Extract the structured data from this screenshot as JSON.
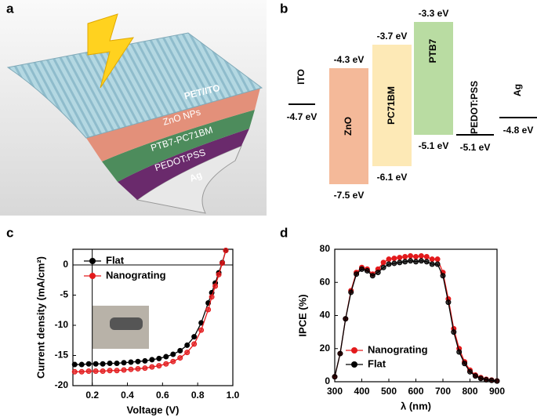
{
  "panel_labels": [
    "a",
    "b",
    "c",
    "d"
  ],
  "device_diagram": {
    "layers": [
      "PET/ITO",
      "ZnO NPs",
      "PTB7-PC71BM",
      "PEDOT:PSS",
      "Ag"
    ]
  },
  "energy_diagram": {
    "materials": [
      {
        "name": "ITO",
        "level": "-4.7 eV"
      },
      {
        "name": "ZnO",
        "top": "-4.3 eV",
        "bottom": "-7.5 eV",
        "color": "#f4b999"
      },
      {
        "name": "PC71BM",
        "top": "-3.7 eV",
        "bottom": "-6.1 eV",
        "color": "#fde9b6"
      },
      {
        "name": "PTB7",
        "top": "-3.3 eV",
        "bottom": "-5.1 eV",
        "color": "#b9dca2"
      },
      {
        "name": "PEDOT:PSS",
        "level": "-5.1 eV"
      },
      {
        "name": "Ag",
        "level": "-4.8 eV"
      }
    ]
  },
  "chart_data": [
    {
      "type": "line",
      "xlabel": "Voltage (V)",
      "ylabel": "Current density (mA/cm²)",
      "x": [
        0.1,
        0.14,
        0.18,
        0.22,
        0.26,
        0.3,
        0.34,
        0.38,
        0.42,
        0.46,
        0.5,
        0.54,
        0.58,
        0.62,
        0.66,
        0.7,
        0.74,
        0.78,
        0.82,
        0.86,
        0.88,
        0.9,
        0.92,
        0.94,
        0.96
      ],
      "series": [
        {
          "name": "Flat",
          "color": "#000000",
          "values": [
            -16.5,
            -16.5,
            -16.4,
            -16.4,
            -16.4,
            -16.3,
            -16.3,
            -16.2,
            -16.1,
            -16.0,
            -15.9,
            -15.7,
            -15.5,
            -15.2,
            -14.8,
            -14.2,
            -13.3,
            -11.9,
            -9.6,
            -6.3,
            -4.6,
            -3.0,
            -1.3,
            0.4,
            2.4
          ]
        },
        {
          "name": "Nanograting",
          "color": "#e31a1c",
          "values": [
            -17.7,
            -17.7,
            -17.6,
            -17.6,
            -17.6,
            -17.5,
            -17.5,
            -17.4,
            -17.3,
            -17.2,
            -17.1,
            -16.9,
            -16.7,
            -16.4,
            -16.0,
            -15.4,
            -14.5,
            -13.1,
            -10.8,
            -7.4,
            -5.3,
            -3.5,
            -1.6,
            0.3,
            2.4
          ]
        }
      ],
      "xlim": [
        0.09,
        1.0
      ],
      "xticks": [
        0.2,
        0.4,
        0.6,
        0.8,
        {
          "value": 1,
          "label": "1.0"
        }
      ],
      "ylim": [
        -20,
        2.6
      ],
      "yticks": [
        -20,
        -15,
        -10,
        -5,
        0
      ],
      "vline": 0.2,
      "legend": "upper left"
    },
    {
      "type": "line",
      "xlabel": "λ (nm)",
      "ylabel": "IPCE (%)",
      "x": [
        300,
        320,
        340,
        360,
        380,
        400,
        420,
        440,
        460,
        480,
        500,
        520,
        540,
        560,
        580,
        600,
        620,
        640,
        660,
        680,
        700,
        720,
        740,
        760,
        780,
        800,
        820,
        840,
        860,
        880,
        900
      ],
      "series": [
        {
          "name": "Nanograting",
          "color": "#e31a1c",
          "values": [
            3,
            17,
            38,
            55,
            66,
            69,
            68,
            65,
            68,
            72,
            74,
            74.5,
            75,
            75.5,
            76,
            75.5,
            76,
            75.5,
            74,
            74,
            66,
            50,
            32,
            20,
            12,
            7,
            4,
            2.5,
            1.5,
            1,
            0.5
          ]
        },
        {
          "name": "Flat",
          "color": "#000000",
          "values": [
            3,
            17,
            38,
            54,
            65,
            68,
            67,
            64,
            66,
            69,
            71,
            71.5,
            72,
            72.5,
            73,
            72.5,
            73,
            72.5,
            71,
            71,
            64,
            48,
            30,
            18,
            11,
            6,
            3.5,
            2,
            1.2,
            0.8,
            0.4
          ]
        }
      ],
      "xlim": [
        300,
        900
      ],
      "xticks": [
        300,
        400,
        500,
        600,
        700,
        800,
        900
      ],
      "ylim": [
        0,
        80
      ],
      "yticks": [
        0,
        20,
        40,
        60,
        80
      ],
      "legend": "lower left"
    }
  ]
}
